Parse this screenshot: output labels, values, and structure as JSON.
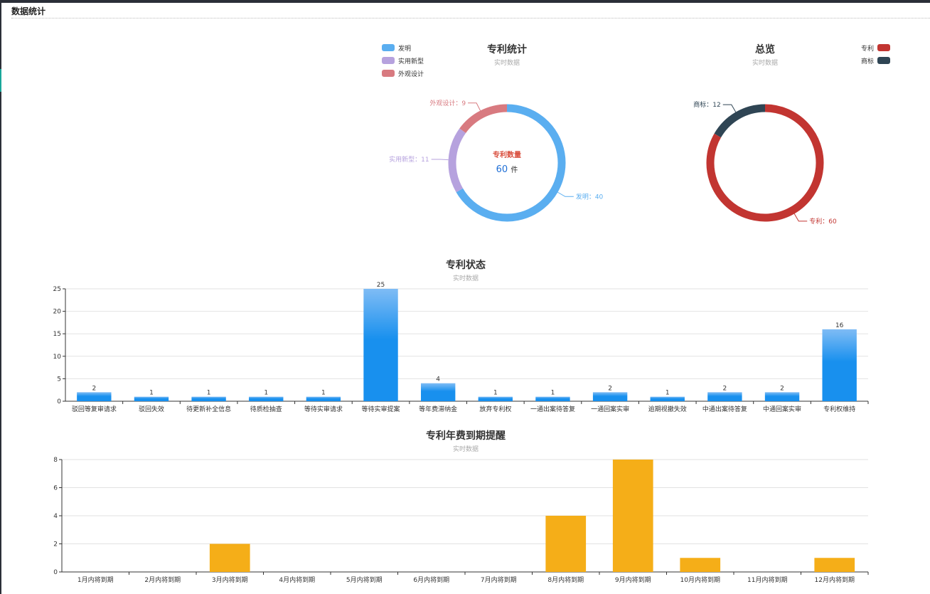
{
  "page": {
    "title": "数据统计"
  },
  "chart_data": [
    {
      "type": "pie",
      "variant": "donut",
      "title": "专利统计",
      "subtitle": "实时数据",
      "center_label": "专利数量",
      "center_value": "60",
      "center_unit": "件",
      "legend_position": "top-left",
      "slices": [
        {
          "name": "发明",
          "value": 40,
          "color": "#5aaef0"
        },
        {
          "name": "实用新型",
          "value": 11,
          "color": "#b6a2de"
        },
        {
          "name": "外观设计",
          "value": 9,
          "color": "#d87a80"
        }
      ]
    },
    {
      "type": "pie",
      "variant": "donut",
      "title": "总览",
      "subtitle": "实时数据",
      "legend_position": "top-right",
      "slices": [
        {
          "name": "专利",
          "value": 60,
          "color": "#c23531"
        },
        {
          "name": "商标",
          "value": 12,
          "color": "#2f4554"
        }
      ]
    },
    {
      "type": "bar",
      "title": "专利状态",
      "subtitle": "实时数据",
      "color": "#1890ee",
      "color_top": "#7fbcf5",
      "ylim": [
        0,
        25
      ],
      "yticks": [
        0,
        5,
        10,
        15,
        20,
        25
      ],
      "grid": true,
      "data_labels": true,
      "categories": [
        "驳回等复审请求",
        "驳回失效",
        "待更新补全信息",
        "待质检抽查",
        "等待实审请求",
        "等待实审提案",
        "等年费滞纳金",
        "放弃专利权",
        "一通出案待答复",
        "一通回案实审",
        "逾期视撤失效",
        "中通出案待答复",
        "中通回案实审",
        "专利权维持"
      ],
      "values": [
        2,
        1,
        1,
        1,
        1,
        25,
        4,
        1,
        1,
        2,
        1,
        2,
        2,
        16
      ]
    },
    {
      "type": "bar",
      "title": "专利年费到期提醒",
      "subtitle": "实时数据",
      "color": "#f5ae18",
      "ylim": [
        0,
        8
      ],
      "yticks": [
        0,
        2,
        4,
        6,
        8
      ],
      "grid": true,
      "data_labels": false,
      "categories": [
        "1月内将到期",
        "2月内将到期",
        "3月内将到期",
        "4月内将到期",
        "5月内将到期",
        "6月内将到期",
        "7月内将到期",
        "8月内将到期",
        "9月内将到期",
        "10月内将到期",
        "11月内将到期",
        "12月内将到期"
      ],
      "values": [
        0,
        0,
        2,
        0,
        0,
        0,
        0,
        4,
        8,
        1,
        0,
        1
      ]
    }
  ]
}
